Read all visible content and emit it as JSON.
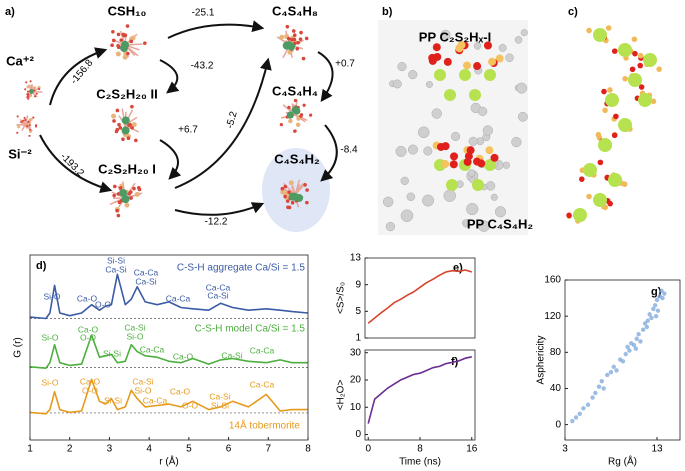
{
  "panel_labels": [
    "a)",
    "b)",
    "c)",
    "d)",
    "e)",
    "f)",
    "g)"
  ],
  "diagram": {
    "nodes": [
      {
        "label": "Ca⁺²"
      },
      {
        "label": "Si⁻²"
      },
      {
        "label": "CSH₁₀"
      },
      {
        "label": "C₂S₂H₂₀ II"
      },
      {
        "label": "C₂S₂H₂₀ I"
      },
      {
        "label": "C₄S₄H₈"
      },
      {
        "label": "C₄S₄H₄"
      },
      {
        "label": "C₄S₄H₂"
      }
    ],
    "edges": [
      {
        "label": "-156.8"
      },
      {
        "label": "-193.2"
      },
      {
        "label": "-25.1"
      },
      {
        "label": "-43.2"
      },
      {
        "label": "+6.7"
      },
      {
        "label": "-5.2"
      },
      {
        "label": "+0.7"
      },
      {
        "label": "-8.4"
      },
      {
        "label": "-12.2"
      }
    ]
  },
  "structures": {
    "labels": [
      "PP C₂S₂Hₓ-I",
      "PP C₄S₄H₂"
    ]
  },
  "chart_data": [
    {
      "type": "line",
      "xlabel": "r (Å)",
      "ylabel": "G (r)",
      "x": [
        1,
        1.4,
        1.5,
        1.62,
        1.75,
        2.0,
        2.3,
        2.55,
        2.75,
        2.9,
        3.05,
        3.2,
        3.4,
        3.55,
        3.7,
        3.9,
        4.2,
        4.5,
        4.8,
        5.1,
        5.5,
        5.8,
        6.1,
        6.5,
        6.95,
        7.3,
        7.6,
        8
      ],
      "xlim": [
        1,
        8
      ],
      "xticks": [
        1,
        2,
        3,
        4,
        5,
        6,
        7,
        8
      ],
      "ylim": [
        0,
        6.7
      ],
      "baselines": [
        4.4,
        2.62,
        0.98
      ],
      "series": [
        {
          "name": "C-S-H aggregate Ca/Si = 1.5",
          "color": "#3b5ba5",
          "values": [
            4.45,
            4.4,
            4.6,
            5.6,
            4.6,
            4.5,
            4.6,
            4.9,
            4.7,
            4.85,
            4.9,
            6.0,
            4.9,
            5.1,
            5.55,
            5.0,
            4.9,
            5.0,
            4.8,
            4.75,
            4.7,
            4.95,
            4.8,
            4.7,
            4.75,
            4.7,
            4.65,
            4.6
          ],
          "annotations": [
            "Si-O",
            "Ca-O",
            "O-O",
            "Si-Si",
            "Ca-Si",
            "Ca-Ca",
            "Ca-Si",
            "Ca-Ca",
            "Ca-Ca",
            "Ca-Si"
          ]
        },
        {
          "name": "C-S-H model Ca/Si = 1.5",
          "color": "#4caf3e",
          "values": [
            2.65,
            2.6,
            2.8,
            3.45,
            2.8,
            2.7,
            2.75,
            3.8,
            3.0,
            3.05,
            3.1,
            2.8,
            2.85,
            3.45,
            3.2,
            3.05,
            3.0,
            2.85,
            2.8,
            2.95,
            2.75,
            2.9,
            2.95,
            2.85,
            2.8,
            2.9,
            2.8,
            2.8
          ],
          "annotations": [
            "Si-O",
            "Ca-O",
            "O-O",
            "Si-Si",
            "Ca-Si",
            "Si-O",
            "Ca-Ca",
            "Ca-O",
            "Ca-Si",
            "Ca-Ca"
          ]
        },
        {
          "name": "14Å tobermorite",
          "color": "#e69a1c",
          "values": [
            1.0,
            0.95,
            1.1,
            1.75,
            1.1,
            1.0,
            1.05,
            2.2,
            1.4,
            1.3,
            1.5,
            1.1,
            1.2,
            1.8,
            1.5,
            1.2,
            1.25,
            1.3,
            1.2,
            1.4,
            1.1,
            1.2,
            1.4,
            1.2,
            1.65,
            1.05,
            1.1,
            1.1
          ],
          "annotations": [
            "Si-O",
            "Ca-O",
            "O-O",
            "Si-Si",
            "Ca-Si",
            "Si-O",
            "Ca-Ca",
            "Ca-O",
            "O-O",
            "Ca-Si",
            "Si-Si",
            "Ca-Ca"
          ]
        }
      ]
    },
    {
      "type": "line",
      "ylabel": "<S>/S₀",
      "x": [
        0,
        1,
        2,
        3,
        4,
        5,
        6,
        7,
        8,
        9,
        10,
        11,
        12,
        13,
        14,
        15,
        16
      ],
      "xlim": [
        -0.5,
        16.5
      ],
      "ylim": [
        1,
        13
      ],
      "yticks": [
        1,
        5,
        9,
        13
      ],
      "series": [
        {
          "color": "#d6452b",
          "values": [
            3.2,
            4.0,
            4.8,
            5.5,
            6.3,
            6.8,
            7.4,
            7.9,
            8.6,
            9.3,
            9.8,
            10.4,
            10.9,
            11.1,
            11.0,
            11.2,
            10.9
          ]
        }
      ]
    },
    {
      "type": "line",
      "xlabel": "Time (ns)",
      "ylabel": "<H₂O>",
      "x": [
        0,
        1,
        2,
        3,
        4,
        5,
        6,
        7,
        8,
        9,
        10,
        11,
        12,
        13,
        14,
        15,
        16
      ],
      "xlim": [
        -0.5,
        16.5
      ],
      "xticks": [
        0,
        8,
        16
      ],
      "ylim": [
        -2,
        31
      ],
      "yticks": [
        0,
        10,
        20,
        30
      ],
      "series": [
        {
          "color": "#6a2c91",
          "values": [
            4,
            13,
            15,
            17,
            18.5,
            20,
            21,
            22,
            22.5,
            23.5,
            24.5,
            25,
            26,
            26.5,
            27,
            28,
            28.5
          ]
        }
      ]
    },
    {
      "type": "scatter",
      "xlabel": "Rg (Å)",
      "ylabel": "Asphericity",
      "x": [
        3.8,
        4.2,
        4.6,
        5.0,
        5.5,
        6.0,
        6.3,
        6.7,
        7.0,
        7.2,
        7.6,
        8.0,
        8.3,
        8.6,
        9.0,
        9.3,
        9.6,
        10.0,
        10.2,
        10.5,
        10.8,
        11.0,
        11.2,
        11.5,
        11.7,
        12.0,
        12.2,
        12.4,
        12.6,
        12.8,
        13.0,
        13.1,
        13.3,
        13.5,
        13.6,
        13.8,
        12.9,
        11.9,
        10.7,
        9.8
      ],
      "values": [
        4,
        8,
        12,
        18,
        22,
        30,
        35,
        42,
        48,
        40,
        55,
        58,
        64,
        60,
        72,
        70,
        78,
        82,
        90,
        88,
        95,
        100,
        92,
        105,
        112,
        115,
        122,
        118,
        128,
        132,
        138,
        126,
        142,
        148,
        140,
        145,
        120,
        108,
        84,
        86
      ],
      "color": "#7ba5db",
      "xlim": [
        3,
        15.5
      ],
      "xticks": [
        3,
        13
      ],
      "ylim": [
        -17,
        160
      ],
      "yticks": [
        0,
        40,
        80,
        120,
        160
      ]
    }
  ]
}
